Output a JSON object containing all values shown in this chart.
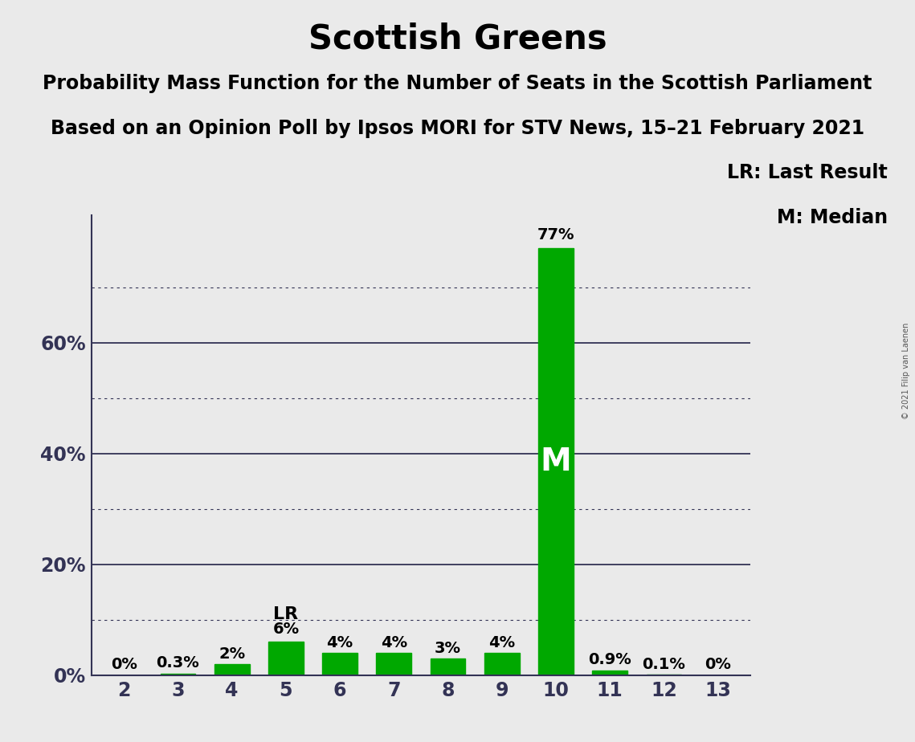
{
  "title": "Scottish Greens",
  "subtitle1": "Probability Mass Function for the Number of Seats in the Scottish Parliament",
  "subtitle2": "Based on an Opinion Poll by Ipsos MORI for STV News, 15–21 February 2021",
  "watermark": "© 2021 Filip van Laenen",
  "categories": [
    2,
    3,
    4,
    5,
    6,
    7,
    8,
    9,
    10,
    11,
    12,
    13
  ],
  "values": [
    0.0,
    0.3,
    2.0,
    6.0,
    4.0,
    4.0,
    3.0,
    4.0,
    77.0,
    0.9,
    0.1,
    0.0
  ],
  "labels": [
    "0%",
    "0.3%",
    "2%",
    "6%",
    "4%",
    "4%",
    "3%",
    "4%",
    "77%",
    "0.9%",
    "0.1%",
    "0%"
  ],
  "bar_color": "#00a800",
  "median_bar": 10,
  "lr_bar": 5,
  "lr_label": "LR",
  "median_label": "M",
  "background_color": "#eaeaea",
  "ylim": [
    0,
    83
  ],
  "solid_grid_values": [
    20,
    40,
    60
  ],
  "dotted_grid_values": [
    10,
    30,
    50,
    70
  ],
  "ytick_positions": [
    0,
    20,
    40,
    60
  ],
  "ytick_labels": [
    "0%",
    "20%",
    "40%",
    "60%"
  ],
  "grid_color": "#333355",
  "legend_text1": "LR: Last Result",
  "legend_text2": "M: Median",
  "title_fontsize": 30,
  "subtitle_fontsize": 17,
  "label_fontsize": 14,
  "tick_fontsize": 17,
  "legend_fontsize": 17,
  "bar_width": 0.65
}
